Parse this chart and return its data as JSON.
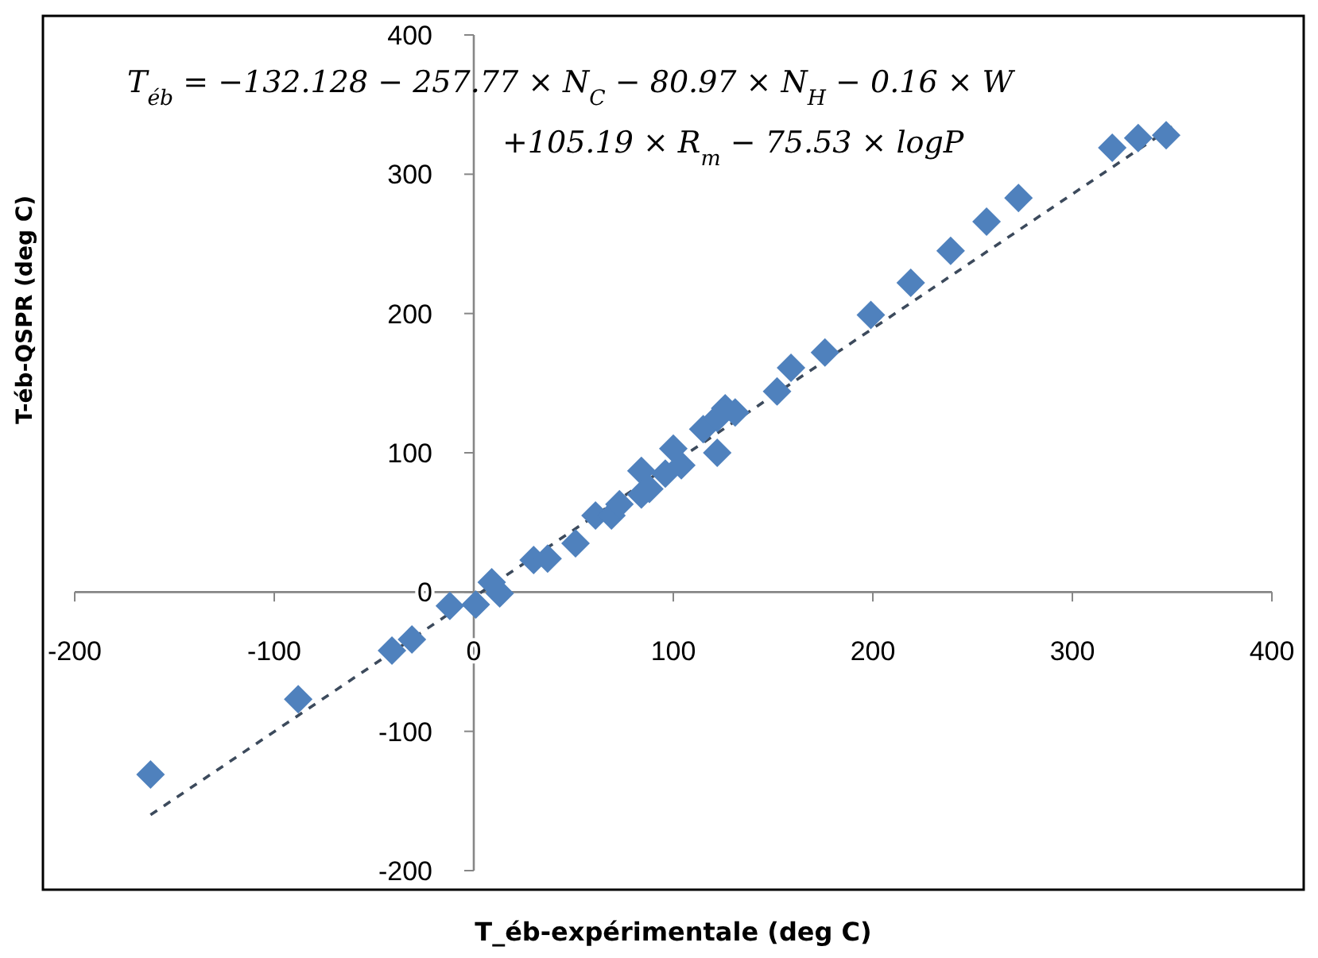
{
  "chart_data": {
    "type": "scatter",
    "xlabel": "T_éb-expérimentale (deg C)",
    "ylabel": "T-éb-QSPR (deg C)",
    "annotations": [
      "T$_{éb}$ = −132.128 − 257.77 × N$_{C}$ − 80.97 × N$_{H}$ − 0.16 × W",
      "+105.19 × R$_{m}$ − 75.53 × logP"
    ],
    "xlim": [
      -200,
      400
    ],
    "ylim": [
      -200,
      400
    ],
    "xticks": [
      -200,
      -100,
      0,
      100,
      200,
      300,
      400
    ],
    "yticks": [
      -200,
      -100,
      0,
      100,
      200,
      300,
      400
    ],
    "grid": false,
    "series": [
      {
        "color": "#4f81bd",
        "marker": "diamond",
        "x": [
          -162,
          -88,
          -41,
          -31,
          -12,
          1,
          13,
          9,
          30,
          37,
          51,
          61,
          69,
          73,
          84,
          84,
          88,
          100,
          96,
          104,
          115,
          122,
          122,
          131,
          126,
          152,
          159,
          176,
          199,
          219,
          239,
          257,
          273,
          320,
          333,
          347
        ],
        "values": [
          -131,
          -77,
          -42,
          -34,
          -10,
          -9,
          -1,
          7,
          23,
          24,
          35,
          55,
          55,
          63,
          87,
          70,
          74,
          103,
          85,
          91,
          117,
          100,
          125,
          129,
          132,
          144,
          161,
          172,
          199,
          222,
          245,
          266,
          283,
          319,
          326,
          328
        ]
      },
      {
        "type": "line",
        "color": "#3c4a5c",
        "line_style": "dashed",
        "marker": "none",
        "x": [
          -162,
          350
        ],
        "values": [
          -160,
          334
        ]
      }
    ]
  }
}
